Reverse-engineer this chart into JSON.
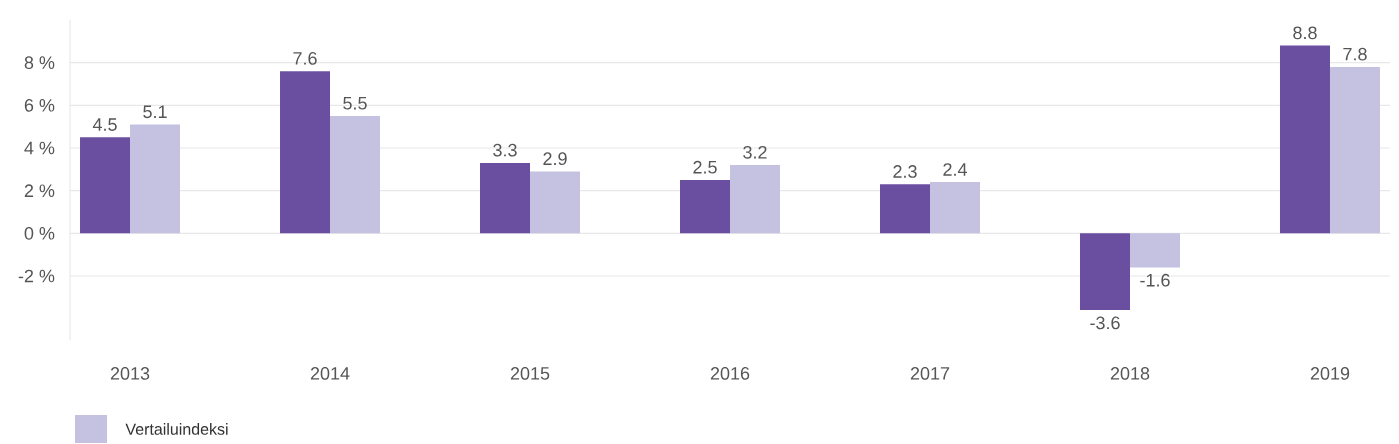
{
  "chart_data": {
    "type": "bar",
    "categories": [
      "2013",
      "2014",
      "2015",
      "2016",
      "2017",
      "2018",
      "2019"
    ],
    "series": [
      {
        "color": "#6a4fa0",
        "values": [
          4.5,
          7.6,
          3.3,
          2.5,
          2.3,
          -3.6,
          8.8
        ]
      },
      {
        "name": "Vertailuindeksi",
        "color": "#c4c2e0",
        "values": [
          5.1,
          5.5,
          2.9,
          3.2,
          2.4,
          -1.6,
          7.8
        ]
      }
    ],
    "yticks": [
      {
        "value": -2,
        "label": "-2 %"
      },
      {
        "value": 0,
        "label": "0 %"
      },
      {
        "value": 2,
        "label": "2 %"
      },
      {
        "value": 4,
        "label": "4 %"
      },
      {
        "value": 6,
        "label": "6 %"
      },
      {
        "value": 8,
        "label": "8 %"
      }
    ],
    "ylim": [
      -5,
      10
    ],
    "grid": "y",
    "data_labels": true,
    "legend": "bottom left"
  }
}
